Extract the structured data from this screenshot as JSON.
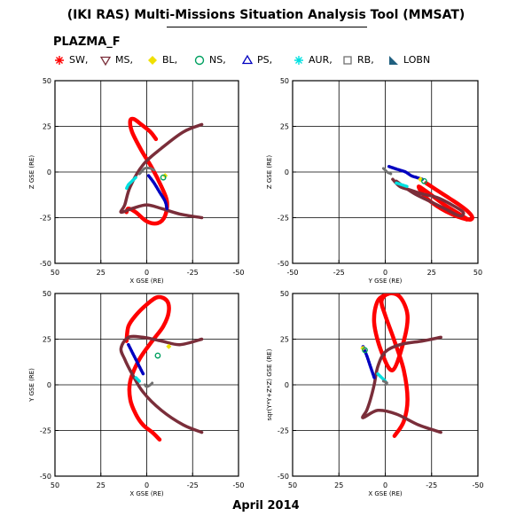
{
  "header": {
    "title": "(IKI RAS) Multi-Missions Situation Analysis Tool (MMSAT)",
    "subtitle": "PLAZMA_F"
  },
  "legend": [
    {
      "label": "SW,",
      "symbol": "star",
      "color": "#ff0000"
    },
    {
      "label": "MS,",
      "symbol": "triangle-down",
      "color": "#7a2e3a"
    },
    {
      "label": "BL,",
      "symbol": "diamond",
      "color": "#f0e000"
    },
    {
      "label": "NS,",
      "symbol": "circle",
      "color": "#00a060"
    },
    {
      "label": "PS,",
      "symbol": "triangle-up",
      "color": "#0000c0"
    },
    {
      "label": "AUR,",
      "symbol": "asterisk",
      "color": "#00e0e0"
    },
    {
      "label": "RB,",
      "symbol": "square",
      "color": "#707070"
    },
    {
      "label": "LOBN",
      "symbol": "lobe",
      "color": "#206080"
    }
  ],
  "footer": {
    "date": "April 2014"
  },
  "chart_data": [
    {
      "type": "scatter",
      "title": "",
      "xlabel": "X GSE (RE)",
      "ylabel": "Z GSE (RE)",
      "xlim": [
        50,
        -50
      ],
      "ylim": [
        -50,
        50
      ],
      "xticks": [
        "50",
        "25",
        "0",
        "-25",
        "-50"
      ],
      "yticks": [
        "-50",
        "-25",
        "0",
        "25",
        "50"
      ],
      "grid": true,
      "series": [
        {
          "region": "SW",
          "x": [
            -5,
            -2,
            3,
            7,
            9,
            8,
            3,
            -3,
            -8,
            -11,
            -10,
            -6,
            0,
            6,
            10,
            11
          ],
          "y": [
            18,
            22,
            26,
            29,
            28,
            22,
            12,
            2,
            -8,
            -16,
            -24,
            -28,
            -27,
            -22,
            -20,
            -22
          ]
        },
        {
          "region": "MS",
          "x": [
            -30,
            -20,
            -8,
            2,
            9,
            12,
            14,
            8,
            0,
            -8,
            -18,
            -30
          ],
          "y": [
            26,
            22,
            13,
            4,
            -8,
            -18,
            -22,
            -20,
            -18,
            -20,
            -23,
            -25
          ]
        },
        {
          "region": "PS",
          "x": [
            -1,
            -4,
            -7,
            -10,
            -11
          ],
          "y": [
            -2,
            -6,
            -11,
            -16,
            -20
          ]
        },
        {
          "region": "AUR",
          "x": [
            6,
            8,
            10,
            11
          ],
          "y": [
            -3,
            -5,
            -7,
            -9
          ]
        },
        {
          "region": "RB",
          "x": [
            4,
            3,
            1,
            -2,
            -4
          ],
          "y": [
            -1,
            0,
            2,
            2,
            1
          ]
        },
        {
          "region": "BL",
          "x": [
            -10
          ],
          "y": [
            -2
          ]
        },
        {
          "region": "NS",
          "x": [
            -9
          ],
          "y": [
            -3
          ]
        }
      ]
    },
    {
      "type": "scatter",
      "title": "",
      "xlabel": "Y GSE (RE)",
      "ylabel": "Z GSE (RE)",
      "xlim": [
        -50,
        50
      ],
      "ylim": [
        -50,
        50
      ],
      "xticks": [
        "-50",
        "-25",
        "0",
        "25",
        "50"
      ],
      "yticks": [
        "-50",
        "-25",
        "0",
        "25",
        "50"
      ],
      "grid": true,
      "series": [
        {
          "region": "SW",
          "x": [
            22,
            28,
            34,
            40,
            45,
            47,
            45,
            40,
            32,
            24,
            18,
            22,
            30,
            38,
            44
          ],
          "y": [
            -6,
            -10,
            -14,
            -18,
            -22,
            -25,
            -26,
            -23,
            -18,
            -12,
            -8,
            -14,
            -20,
            -24,
            -26
          ]
        },
        {
          "region": "MS",
          "x": [
            4,
            8,
            14,
            20,
            28,
            36,
            42,
            40,
            32,
            24,
            16,
            10,
            6
          ],
          "y": [
            -4,
            -8,
            -10,
            -12,
            -14,
            -18,
            -22,
            -24,
            -20,
            -16,
            -12,
            -8,
            -5
          ]
        },
        {
          "region": "PS",
          "x": [
            2,
            5,
            8,
            11,
            14,
            17,
            20
          ],
          "y": [
            3,
            2,
            1,
            0,
            -2,
            -3,
            -4
          ]
        },
        {
          "region": "AUR",
          "x": [
            6,
            9,
            12
          ],
          "y": [
            -6,
            -7,
            -8
          ]
        },
        {
          "region": "RB",
          "x": [
            -1,
            0,
            1,
            3
          ],
          "y": [
            2,
            1,
            0,
            -1
          ]
        },
        {
          "region": "BL",
          "x": [
            19
          ],
          "y": [
            -4
          ]
        },
        {
          "region": "NS",
          "x": [
            21
          ],
          "y": [
            -5
          ]
        }
      ]
    },
    {
      "type": "scatter",
      "title": "",
      "xlabel": "X GSE (RE)",
      "ylabel": "Y GSE (RE)",
      "xlim": [
        50,
        -50
      ],
      "ylim": [
        -50,
        50
      ],
      "xticks": [
        "50",
        "25",
        "0",
        "-25",
        "-50"
      ],
      "yticks": [
        "-50",
        "-25",
        "0",
        "25",
        "50"
      ],
      "grid": true,
      "series": [
        {
          "region": "SW",
          "x": [
            -7,
            -3,
            2,
            6,
            9,
            9,
            4,
            -3,
            -9,
            -12,
            -11,
            -6,
            0,
            6,
            10,
            11
          ],
          "y": [
            -30,
            -26,
            -22,
            -16,
            -8,
            2,
            14,
            24,
            32,
            40,
            46,
            48,
            44,
            38,
            32,
            24
          ]
        },
        {
          "region": "MS",
          "x": [
            -30,
            -20,
            -8,
            2,
            8,
            12,
            14,
            10,
            2,
            -8,
            -18,
            -30
          ],
          "y": [
            -26,
            -22,
            -14,
            -4,
            6,
            14,
            20,
            26,
            26,
            24,
            22,
            25
          ]
        },
        {
          "region": "PS",
          "x": [
            2,
            4,
            6,
            8,
            10
          ],
          "y": [
            6,
            10,
            14,
            18,
            22
          ]
        },
        {
          "region": "AUR",
          "x": [
            4,
            6
          ],
          "y": [
            2,
            4
          ]
        },
        {
          "region": "RB",
          "x": [
            1,
            0,
            -2,
            -3
          ],
          "y": [
            0,
            -1,
            0,
            1
          ]
        },
        {
          "region": "BL",
          "x": [
            -12
          ],
          "y": [
            21
          ]
        },
        {
          "region": "NS",
          "x": [
            -6
          ],
          "y": [
            16
          ]
        }
      ]
    },
    {
      "type": "scatter",
      "title": "",
      "xlabel": "X GSE (RE)",
      "ylabel": "sqr(Y*Y+Z*Z) GSE (RE)",
      "xlim": [
        50,
        -50
      ],
      "ylim": [
        -50,
        50
      ],
      "xticks": [
        "50",
        "25",
        "0",
        "-25",
        "-50"
      ],
      "yticks": [
        "-50",
        "-25",
        "0",
        "25",
        "50"
      ],
      "grid": true,
      "series": [
        {
          "region": "SW",
          "x": [
            -5,
            -10,
            -12,
            -10,
            -5,
            0,
            2,
            -2,
            -8,
            -12,
            -10,
            -4,
            2,
            6,
            4,
            -2
          ],
          "y": [
            -28,
            -20,
            -8,
            8,
            24,
            38,
            46,
            50,
            48,
            38,
            24,
            8,
            18,
            34,
            46,
            50
          ]
        },
        {
          "region": "MS",
          "x": [
            -30,
            -20,
            -8,
            0,
            4,
            6,
            8,
            10,
            12,
            4,
            -6,
            -18,
            -30
          ],
          "y": [
            26,
            24,
            22,
            18,
            10,
            0,
            -8,
            -14,
            -18,
            -14,
            -16,
            -22,
            -26
          ]
        },
        {
          "region": "PS",
          "x": [
            6,
            8,
            10,
            12
          ],
          "y": [
            4,
            10,
            16,
            21
          ]
        },
        {
          "region": "AUR",
          "x": [
            0,
            2,
            4
          ],
          "y": [
            2,
            4,
            6
          ]
        },
        {
          "region": "RB",
          "x": [
            0,
            -1,
            1
          ],
          "y": [
            0,
            1,
            2
          ]
        },
        {
          "region": "BL",
          "x": [
            12
          ],
          "y": [
            20
          ]
        },
        {
          "region": "NS",
          "x": [
            11
          ],
          "y": [
            19
          ]
        }
      ]
    }
  ]
}
